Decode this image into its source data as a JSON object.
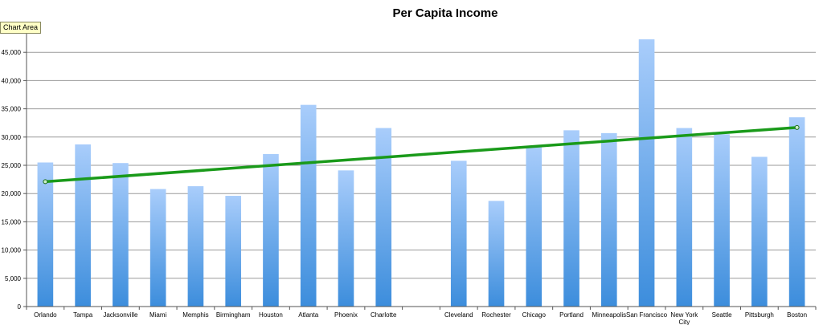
{
  "chart_data": {
    "type": "bar",
    "title": "Per Capita Income",
    "xlabel": "",
    "ylabel": "",
    "ylim": [
      0,
      50000
    ],
    "yticks": [
      0,
      5000,
      10000,
      15000,
      20000,
      25000,
      30000,
      35000,
      40000,
      45000
    ],
    "ytick_labels": [
      "0",
      "5,000",
      "10,000",
      "15,000",
      "20,000",
      "25,000",
      "30,000",
      "35,000",
      "40,000",
      "45,000"
    ],
    "grid": true,
    "categories": [
      "Orlando",
      "Tampa",
      "Jacksonville",
      "Miami",
      "Memphis",
      "Birmingham",
      "Houston",
      "Atlanta",
      "Phoenix",
      "Charlotte",
      "",
      "Cleveland",
      "Rochester",
      "Chicago",
      "Portland",
      "Minneapolis",
      "San Francisco",
      "New York City",
      "Seattle",
      "Pittsburgh",
      "Boston"
    ],
    "values": [
      25500,
      28700,
      25400,
      20800,
      21300,
      19600,
      27000,
      35700,
      24100,
      31600,
      null,
      25800,
      18700,
      28400,
      31200,
      30700,
      47300,
      31600,
      30500,
      26500,
      33500
    ],
    "trendline": {
      "type": "linear",
      "start": 22100,
      "end": 31700,
      "color": "#1a9a1a"
    },
    "bar_color_top": "#a9cdfb",
    "bar_color_bottom": "#3c8ddc"
  },
  "tooltip": {
    "label": "Chart Area"
  }
}
